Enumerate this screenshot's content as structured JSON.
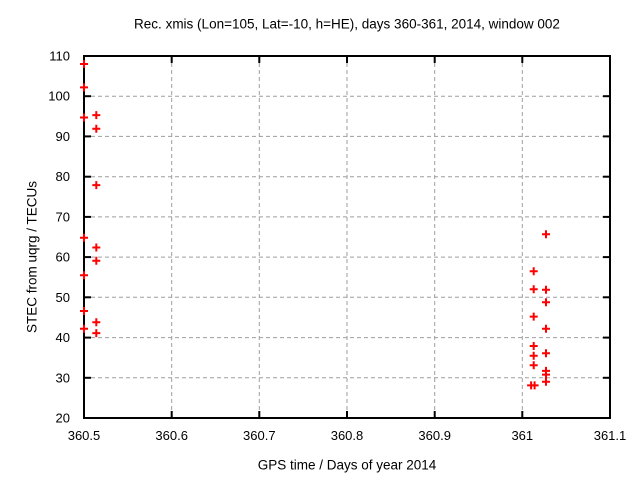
{
  "chart_data": {
    "type": "scatter",
    "title": "Rec. xmis (Lon=105, Lat=-10, h=HE), days 360-361, 2014, window 002",
    "xlabel": "GPS time / Days of year 2014",
    "ylabel": "STEC from uqrg / TECUs",
    "xlim": [
      360.5,
      361.1
    ],
    "ylim": [
      20,
      110
    ],
    "xticks": [
      360.5,
      360.6,
      360.7,
      360.8,
      360.9,
      361.0,
      361.1
    ],
    "xtick_labels": [
      "360.5",
      "360.6",
      "360.7",
      "360.8",
      "360.9",
      "361",
      "361.1"
    ],
    "yticks": [
      20,
      30,
      40,
      50,
      60,
      70,
      80,
      90,
      100,
      110
    ],
    "ytick_labels": [
      "20",
      "30",
      "40",
      "50",
      "60",
      "70",
      "80",
      "90",
      "100",
      "110"
    ],
    "grid": true,
    "legend": "none",
    "marker": "plus",
    "series": [
      {
        "name": "STEC points",
        "points": [
          [
            360.5,
            108.0
          ],
          [
            360.5,
            102.2
          ],
          [
            360.5,
            94.7
          ],
          [
            360.5,
            64.8
          ],
          [
            360.5,
            55.5
          ],
          [
            360.5,
            46.6
          ],
          [
            360.5,
            42.2
          ],
          [
            360.514,
            95.3
          ],
          [
            360.514,
            91.9
          ],
          [
            360.514,
            77.9
          ],
          [
            360.514,
            62.4
          ],
          [
            360.514,
            59.1
          ],
          [
            360.514,
            43.8
          ],
          [
            360.514,
            41.1
          ],
          [
            361.013,
            56.5
          ],
          [
            361.013,
            52.0
          ],
          [
            361.013,
            45.2
          ],
          [
            361.013,
            37.9
          ],
          [
            361.013,
            35.5
          ],
          [
            361.013,
            33.1
          ],
          [
            361.01,
            28.1
          ],
          [
            361.014,
            28.1
          ],
          [
            361.027,
            65.7
          ],
          [
            361.027,
            51.9
          ],
          [
            361.027,
            48.8
          ],
          [
            361.027,
            42.2
          ],
          [
            361.027,
            36.1
          ],
          [
            361.027,
            31.7
          ],
          [
            361.027,
            30.8
          ],
          [
            361.027,
            29.0
          ]
        ]
      }
    ],
    "colors": {
      "marker": "#ff0000",
      "grid": "#9e9e9e",
      "border": "#000000",
      "text": "#000000",
      "background": "#ffffff"
    }
  }
}
